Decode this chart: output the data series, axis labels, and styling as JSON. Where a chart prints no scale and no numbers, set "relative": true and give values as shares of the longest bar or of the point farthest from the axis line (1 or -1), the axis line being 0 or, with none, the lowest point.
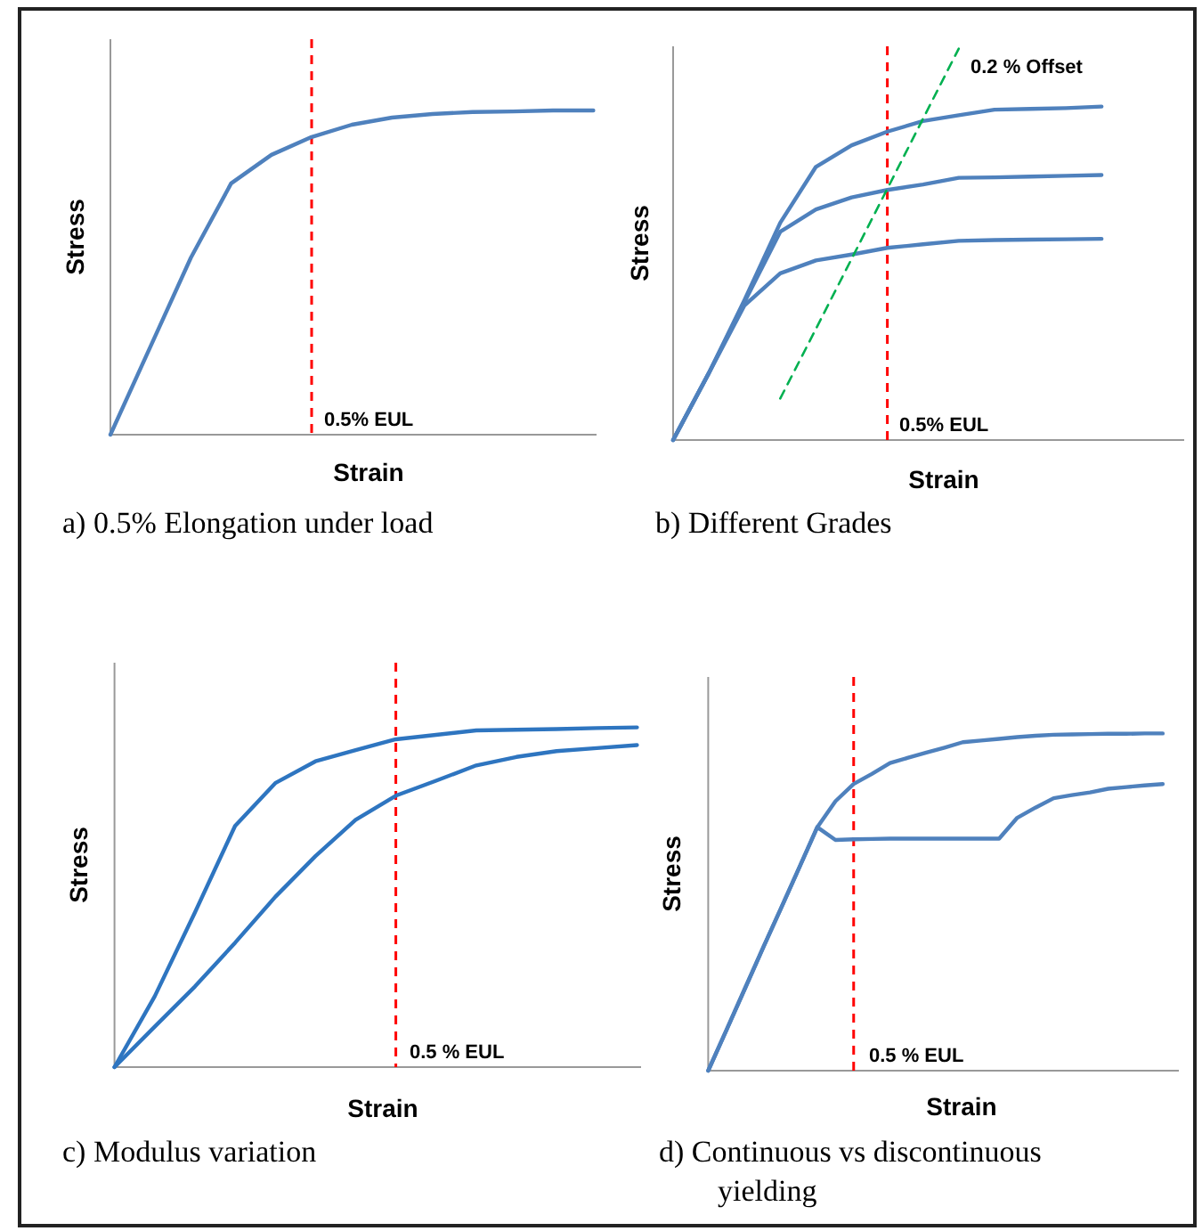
{
  "chart_data": [
    {
      "type": "line",
      "title": "a) 0.5% Elongation under load",
      "xlabel": "Strain",
      "ylabel": "Stress",
      "relative": true,
      "categories": [
        null,
        null,
        null,
        null,
        null,
        null,
        null,
        null,
        null,
        null,
        null,
        null,
        null
      ],
      "series": [
        {
          "color": "#4f81bd",
          "values": [
            0,
            0.273,
            0.546,
            0.775,
            0.863,
            0.918,
            0.956,
            0.978,
            0.989,
            0.995,
            0.997,
            1,
            1
          ]
        }
      ],
      "annotations": [
        "0.5% EUL"
      ]
    },
    {
      "type": "line",
      "title": "b) Different Grades",
      "xlabel": "Strain",
      "ylabel": "Stress",
      "relative": true,
      "categories": [
        null,
        null,
        null,
        null,
        null,
        null,
        null,
        null,
        null,
        null,
        null,
        null,
        null
      ],
      "series": [
        {
          "color": "#4f81bd",
          "values": [
            0,
            0.171,
            0.358,
            0.555,
            0.698,
            0.753,
            0.788,
            0.815,
            0.83,
            0.844,
            0.846,
            0.848,
            0.852
          ]
        },
        {
          "color": "#4f81bd",
          "values": [
            0,
            0.171,
            0.353,
            0.532,
            0.589,
            0.62,
            0.639,
            0.653,
            0.67,
            0.671,
            0.673,
            0.675,
            0.677
          ]
        },
        {
          "color": "#4f81bd",
          "values": [
            0,
            0.171,
            0.344,
            0.426,
            0.459,
            0.474,
            0.491,
            0.5,
            0.509,
            0.511,
            0.512,
            0.513,
            0.514
          ]
        },
        {
          "type": "line",
          "color": "#00b050",
          "line_style": "dashed",
          "values": [
            null,
            null,
            null,
            0.106,
            0.284,
            0.463,
            0.642,
            0.821,
            1,
            null,
            null,
            null,
            null
          ]
        }
      ],
      "annotations": [
        "0.5% EUL",
        "0.2 % Offset"
      ]
    },
    {
      "type": "line",
      "title": "c) Modulus variation",
      "xlabel": "Strain",
      "ylabel": "Stress",
      "relative": true,
      "categories": [
        null,
        null,
        null,
        null,
        null,
        null,
        null,
        null,
        null,
        null,
        null,
        null,
        null,
        null
      ],
      "series": [
        {
          "color": "#2e75c0",
          "values": [
            0,
            0.208,
            0.455,
            0.71,
            0.836,
            0.9,
            0.933,
            0.965,
            0.978,
            0.991,
            0.993,
            0.995,
            0.998,
            1
          ]
        },
        {
          "color": "#2e75c0",
          "values": [
            0,
            0.119,
            0.237,
            0.366,
            0.501,
            0.621,
            0.728,
            0.799,
            0.843,
            0.888,
            0.913,
            0.93,
            0.939,
            0.948
          ]
        }
      ],
      "annotations": [
        "0.5 % EUL"
      ]
    },
    {
      "type": "line",
      "title": "d) Continuous vs discontinuous yielding",
      "xlabel": "Strain",
      "ylabel": "Stress",
      "relative": true,
      "categories": [
        null,
        null,
        null,
        null,
        null,
        null,
        null,
        null,
        null,
        null,
        null,
        null,
        null,
        null,
        null,
        null,
        null,
        null,
        null,
        null,
        null,
        null,
        null,
        null,
        null,
        null
      ],
      "series": [
        {
          "color": "#4f81bd",
          "values": [
            0,
            0.12,
            0.241,
            0.362,
            0.481,
            0.601,
            0.722,
            0.799,
            0.85,
            0.88,
            0.912,
            0.928,
            0.943,
            0.958,
            0.974,
            0.979,
            0.984,
            0.989,
            0.993,
            0.996,
            0.997,
            0.998,
            0.999,
            0.999,
            1,
            1
          ]
        },
        {
          "color": "#4f81bd",
          "values": [
            0,
            0.12,
            0.241,
            0.362,
            0.481,
            0.601,
            0.722,
            0.684,
            0.686,
            0.687,
            0.688,
            0.688,
            0.688,
            0.688,
            0.688,
            0.688,
            0.688,
            0.75,
            0.78,
            0.808,
            0.817,
            0.825,
            0.836,
            0.841,
            0.846,
            0.85
          ]
        }
      ],
      "annotations": [
        "0.5 % EUL"
      ]
    }
  ]
}
